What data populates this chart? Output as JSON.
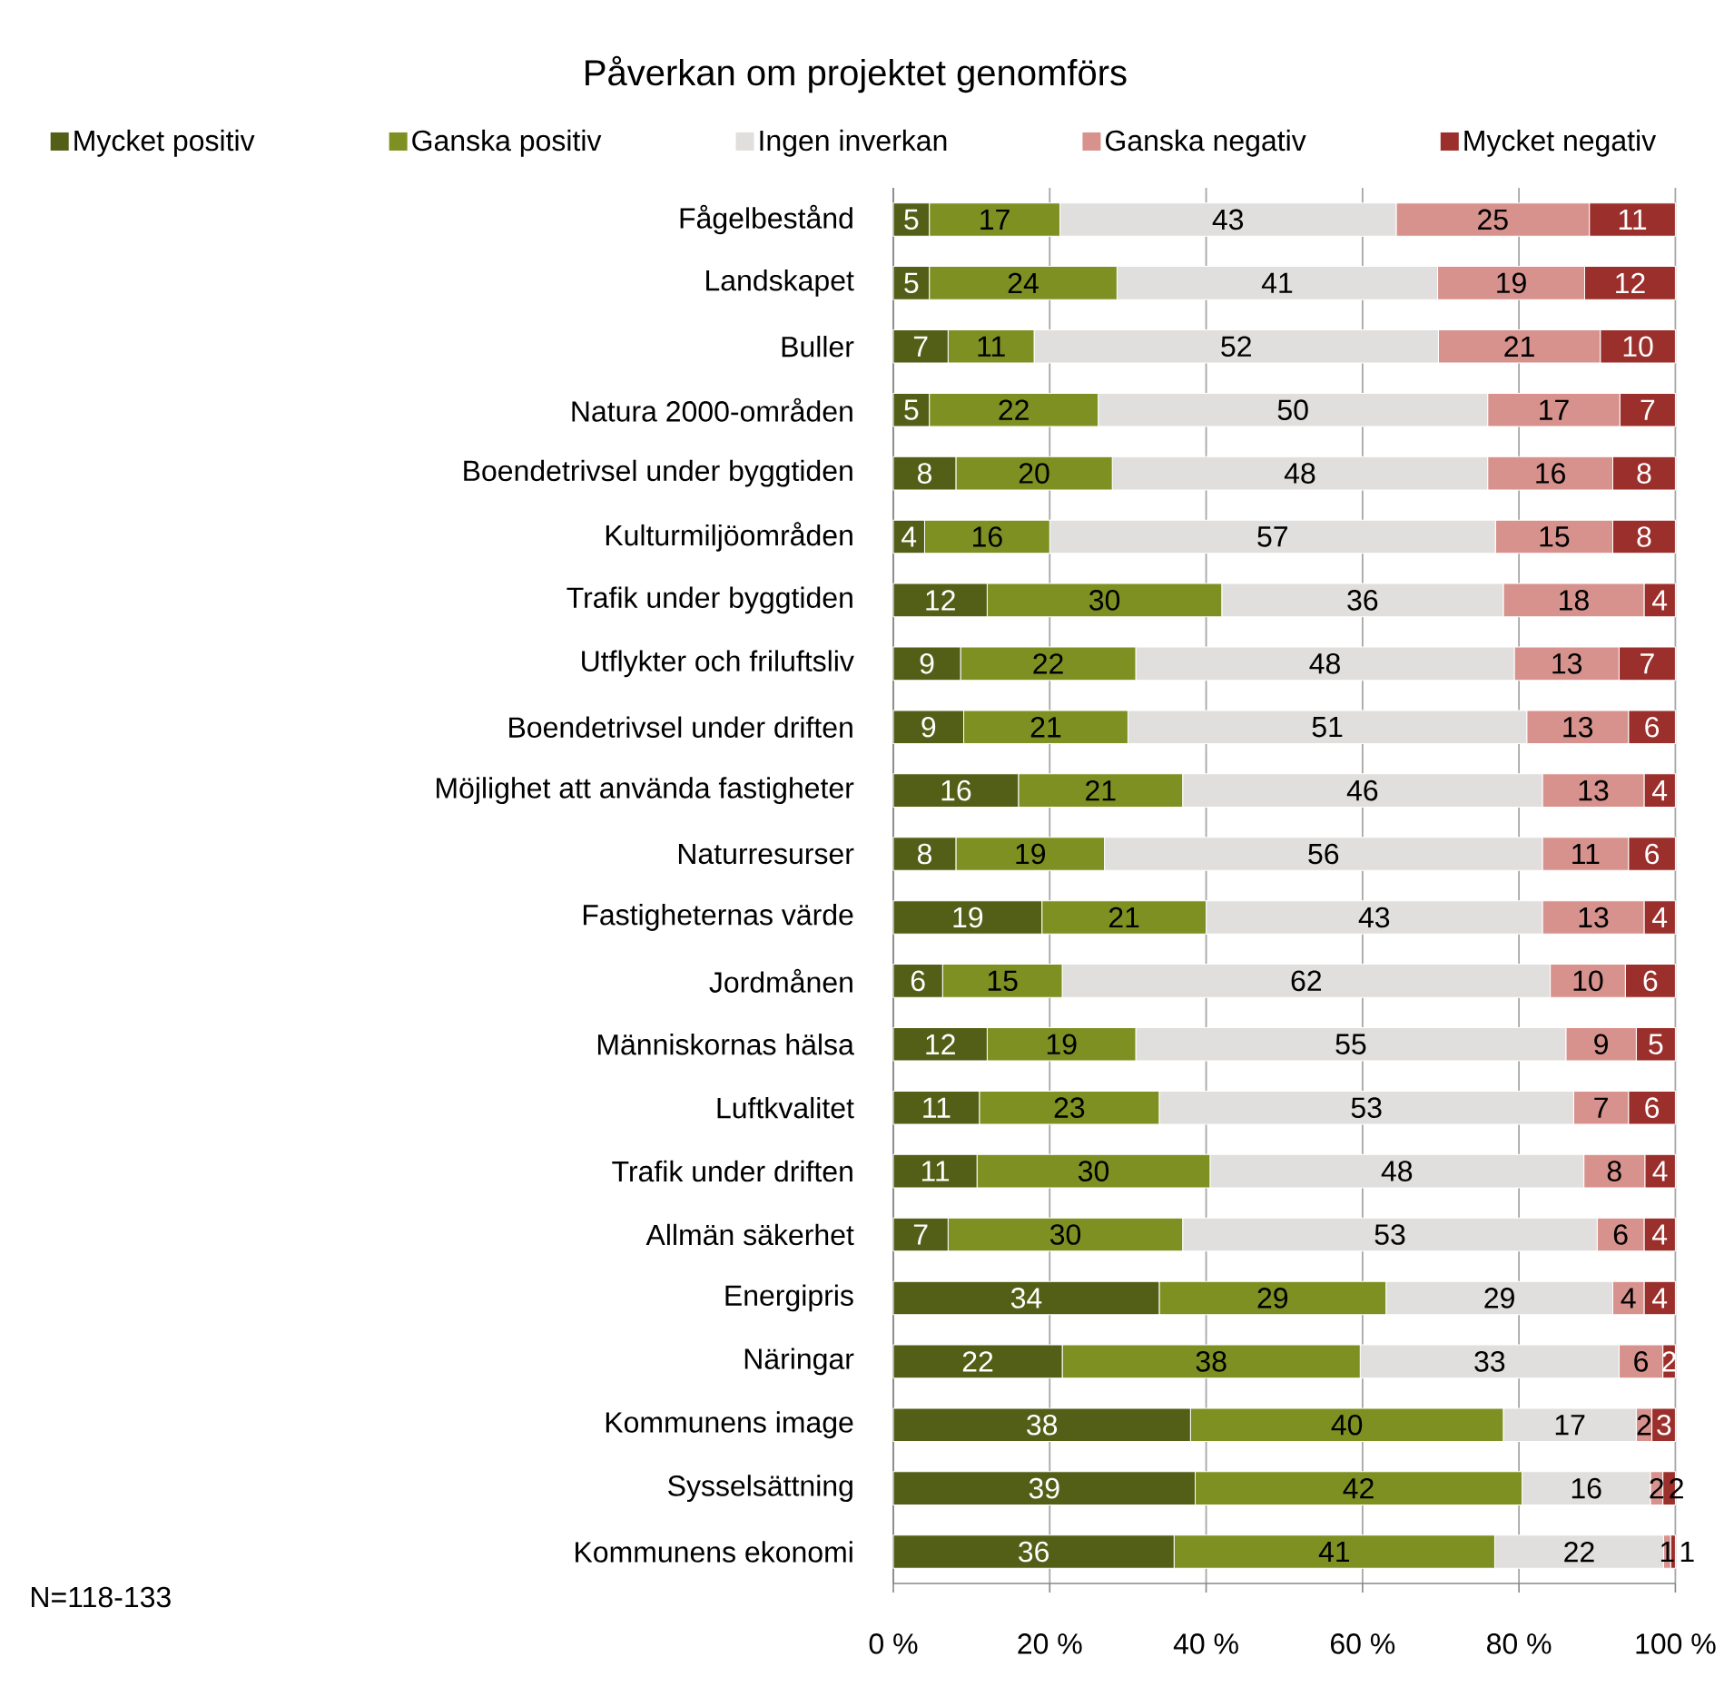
{
  "chart_data": {
    "type": "bar",
    "orientation": "horizontal",
    "stacked": true,
    "title": "Påverkan om projektet genomförs",
    "categories": [
      "Fågelbestånd",
      "Landskapet",
      "Buller",
      "Natura 2000-områden",
      "Boendetrivsel under byggtiden",
      "Kulturmiljöområden",
      "Trafik under byggtiden",
      "Utflykter och friluftsliv",
      "Boendetrivsel under driften",
      "Möjlighet att använda fastigheter",
      "Naturresurser",
      "Fastigheternas värde",
      "Jordmånen",
      "Människornas hälsa",
      "Luftkvalitet",
      "Trafik under driften",
      "Allmän säkerhet",
      "Energipris",
      "Näringar",
      "Kommunens image",
      "Sysselsättning",
      "Kommunens ekonomi"
    ],
    "series": [
      {
        "name": "Mycket positiv",
        "color": "#535f17",
        "values": [
          4.6,
          4.6,
          7,
          4.6,
          8,
          4,
          12,
          8.6,
          9,
          16,
          8,
          19,
          6.3,
          12,
          11,
          10.7,
          7,
          34,
          21.6,
          38,
          38.6,
          35.9
        ],
        "value_labels": [
          "5",
          "5",
          "7",
          "5",
          "8",
          "4",
          "12",
          "9",
          "9",
          "16",
          "8",
          "19",
          "6",
          "12",
          "11",
          "11",
          "7",
          "34",
          "22",
          "38",
          "39",
          "36"
        ]
      },
      {
        "name": "Ganska positiv",
        "color": "#7e9022",
        "values": [
          16.7,
          24,
          11,
          21.6,
          20,
          16,
          30,
          22.4,
          21,
          21,
          19,
          21,
          15.3,
          19,
          23,
          29.8,
          30,
          29,
          38.1,
          40,
          41.8,
          41
        ],
        "value_labels": [
          "17",
          "24",
          "11",
          "22",
          "20",
          "16",
          "30",
          "22",
          "21",
          "21",
          "19",
          "21",
          "15",
          "19",
          "23",
          "30",
          "30",
          "29",
          "38",
          "40",
          "42",
          "41"
        ]
      },
      {
        "name": "Ingen inverkan",
        "color": "#e0dfdd",
        "values": [
          43,
          41,
          51.7,
          49.8,
          48,
          57,
          36,
          48.4,
          51,
          46,
          56,
          43,
          62.4,
          55,
          53,
          47.8,
          53,
          29,
          33.1,
          17,
          16.4,
          21.6
        ],
        "value_labels": [
          "43",
          "41",
          "52",
          "50",
          "48",
          "57",
          "36",
          "48",
          "51",
          "46",
          "56",
          "43",
          "62",
          "55",
          "53",
          "48",
          "53",
          "29",
          "33",
          "17",
          "16",
          "22"
        ]
      },
      {
        "name": "Ganska negativ",
        "color": "#d7928e",
        "values": [
          24.7,
          18.8,
          20.7,
          16.9,
          16,
          15,
          18,
          13.4,
          13,
          13,
          11,
          13,
          9.6,
          9,
          7,
          7.8,
          6,
          4,
          5.6,
          2,
          1.6,
          0.9
        ],
        "value_labels": [
          "25",
          "19",
          "21",
          "17",
          "16",
          "15",
          "18",
          "13",
          "13",
          "13",
          "11",
          "13",
          "10",
          "9",
          "7",
          "8",
          "6",
          "4",
          "6",
          "2",
          "2",
          "1"
        ]
      },
      {
        "name": "Mycket negativ",
        "color": "#9b2f2b",
        "values": [
          11,
          11.6,
          9.6,
          7.1,
          8,
          8,
          4,
          7.2,
          6,
          4,
          6,
          4,
          6.4,
          5,
          6,
          3.9,
          4,
          4,
          1.6,
          3,
          1.6,
          0.6
        ],
        "value_labels": [
          "11",
          "12",
          "10",
          "7",
          "8",
          "8",
          "4",
          "7",
          "6",
          "4",
          "6",
          "4",
          "6",
          "5",
          "6",
          "4",
          "4",
          "4",
          "2",
          "3",
          "2",
          "1"
        ]
      }
    ],
    "xlim": [
      0,
      100
    ],
    "xticks": [
      {
        "value": 0,
        "label": "0 %"
      },
      {
        "value": 20,
        "label": "20 %"
      },
      {
        "value": 40,
        "label": "40 %"
      },
      {
        "value": 60,
        "label": "60 %"
      },
      {
        "value": 80,
        "label": "80 %"
      },
      {
        "value": 100,
        "label": "100 %"
      }
    ],
    "grid": "x",
    "legend": "top",
    "annotations": [
      "N=118-133"
    ]
  }
}
